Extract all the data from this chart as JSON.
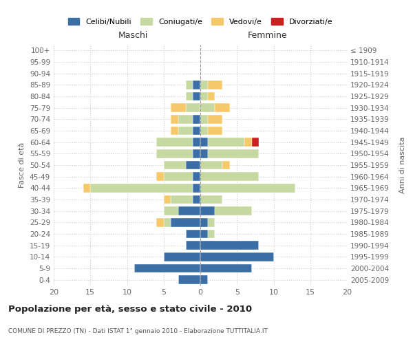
{
  "age_groups": [
    "0-4",
    "5-9",
    "10-14",
    "15-19",
    "20-24",
    "25-29",
    "30-34",
    "35-39",
    "40-44",
    "45-49",
    "50-54",
    "55-59",
    "60-64",
    "65-69",
    "70-74",
    "75-79",
    "80-84",
    "85-89",
    "90-94",
    "95-99",
    "100+"
  ],
  "birth_years": [
    "2005-2009",
    "2000-2004",
    "1995-1999",
    "1990-1994",
    "1985-1989",
    "1980-1984",
    "1975-1979",
    "1970-1974",
    "1965-1969",
    "1960-1964",
    "1955-1959",
    "1950-1954",
    "1945-1949",
    "1940-1944",
    "1935-1939",
    "1930-1934",
    "1925-1929",
    "1920-1924",
    "1915-1919",
    "1910-1914",
    "≤ 1909"
  ],
  "males": {
    "celibi": [
      3,
      9,
      5,
      2,
      2,
      4,
      3,
      1,
      1,
      1,
      2,
      1,
      1,
      1,
      1,
      0,
      1,
      1,
      0,
      0,
      0
    ],
    "coniugati": [
      0,
      0,
      0,
      0,
      0,
      1,
      2,
      3,
      14,
      4,
      3,
      5,
      5,
      2,
      2,
      2,
      1,
      1,
      0,
      0,
      0
    ],
    "vedovi": [
      0,
      0,
      0,
      0,
      0,
      1,
      0,
      1,
      1,
      1,
      0,
      0,
      0,
      1,
      1,
      2,
      0,
      0,
      0,
      0,
      0
    ],
    "divorziati": [
      0,
      0,
      0,
      0,
      0,
      0,
      0,
      0,
      0,
      0,
      0,
      0,
      0,
      0,
      0,
      0,
      0,
      0,
      0,
      0,
      0
    ]
  },
  "females": {
    "nubili": [
      1,
      7,
      10,
      8,
      1,
      1,
      2,
      0,
      0,
      0,
      0,
      1,
      1,
      0,
      0,
      0,
      0,
      0,
      0,
      0,
      0
    ],
    "coniugate": [
      0,
      0,
      0,
      0,
      1,
      1,
      5,
      3,
      13,
      8,
      3,
      7,
      5,
      1,
      1,
      2,
      1,
      1,
      0,
      0,
      0
    ],
    "vedove": [
      0,
      0,
      0,
      0,
      0,
      0,
      0,
      0,
      0,
      0,
      1,
      0,
      1,
      2,
      2,
      2,
      1,
      2,
      0,
      0,
      0
    ],
    "divorziate": [
      0,
      0,
      0,
      0,
      0,
      0,
      0,
      0,
      0,
      0,
      0,
      0,
      1,
      0,
      0,
      0,
      0,
      0,
      0,
      0,
      0
    ]
  },
  "colors": {
    "celibi_nubili": "#3a6ea5",
    "coniugati": "#c5d9a0",
    "vedovi": "#f5c96a",
    "divorziati": "#cc2020"
  },
  "xlim": [
    -20,
    20
  ],
  "xticks": [
    -20,
    -15,
    -10,
    -5,
    0,
    5,
    10,
    15,
    20
  ],
  "xticklabels": [
    "20",
    "15",
    "10",
    "5",
    "0",
    "5",
    "10",
    "15",
    "20"
  ],
  "title": "Popolazione per età, sesso e stato civile - 2010",
  "subtitle": "COMUNE DI PREZZO (TN) - Dati ISTAT 1° gennaio 2010 - Elaborazione TUTTITALIA.IT",
  "ylabel_left": "Fasce di età",
  "ylabel_right": "Anni di nascita",
  "label_maschi": "Maschi",
  "label_femmine": "Femmine",
  "legend_labels": [
    "Celibi/Nubili",
    "Coniugati/e",
    "Vedovi/e",
    "Divorziati/e"
  ],
  "background_color": "#ffffff",
  "grid_color": "#cccccc"
}
